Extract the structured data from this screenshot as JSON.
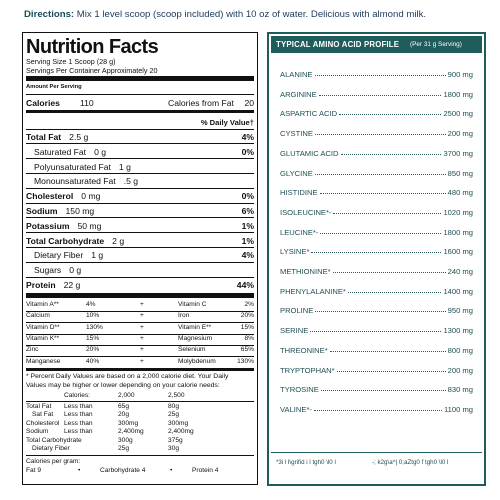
{
  "directions": {
    "label": "Directions:",
    "text": "Mix 1 level scoop (scoop included) with 10 oz of water. Delicious with almond milk."
  },
  "nutrition_facts": {
    "title": "Nutrition Facts",
    "serving_size": "Serving Size 1 Scoop (28 g)",
    "servings": "Servings Per Container Approximately 20",
    "amount_per_serving": "Amount Per Serving",
    "calories": {
      "label": "Calories",
      "value": "110"
    },
    "calories_from_fat": {
      "label": "Calories from Fat",
      "value": "20"
    },
    "daily_value_header": "% Daily Value†",
    "nutrients": [
      {
        "name": "Total Fat",
        "amount": "2.5 g",
        "dv": "4%"
      },
      {
        "name": "Saturated Fat",
        "amount": "0 g",
        "dv": "0%"
      },
      {
        "name": "Polyunsaturated Fat",
        "amount": "1 g"
      },
      {
        "name": "Monounsaturated Fat",
        "amount": ".5 g"
      },
      {
        "name": "Cholesterol",
        "amount": "0 mg",
        "dv": "0%"
      },
      {
        "name": "Sodium",
        "amount": "150 mg",
        "dv": "6%"
      },
      {
        "name": "Potassium",
        "amount": "50 mg",
        "dv": "1%"
      },
      {
        "name": "Total Carbohydrate",
        "amount": "2 g",
        "dv": "1%"
      },
      {
        "name": "Dietary Fiber",
        "amount": "1 g",
        "dv": "4%"
      },
      {
        "name": "Sugars",
        "amount": "0 g"
      },
      {
        "name": "Protein",
        "amount": "22 g",
        "dv": "44%"
      }
    ],
    "vitamins": [
      [
        "Vitamin A**",
        "4%",
        "+",
        "Vitamin C",
        "2%"
      ],
      [
        "Calcium",
        "10%",
        "+",
        "Iron",
        "20%"
      ],
      [
        "Vitamin D**",
        "130%",
        "+",
        "Vitamin E**",
        "15%"
      ],
      [
        "Vitamin K**",
        "15%",
        "+",
        "Magnesium",
        "8%"
      ],
      [
        "Zinc",
        "20%",
        "+",
        "Selenium",
        "65%"
      ],
      [
        "Manganese",
        "40%",
        "+",
        "Molybdenum",
        "130%"
      ]
    ],
    "footnote": [
      "* Percent Daily Values are based on a 2,000 calorie diet. Your Daily",
      "Values may be higher or lower depending on your calorie needs:"
    ],
    "dv_table": {
      "header": [
        "Calories:",
        "2,000",
        "2,500"
      ],
      "rows": [
        [
          "Total Fat",
          "Less than",
          "65g",
          "80g"
        ],
        [
          "Sat Fat",
          "Less than",
          "20g",
          "25g"
        ],
        [
          "Cholesterol",
          "Less than",
          "300mg",
          "300mg"
        ],
        [
          "Sodium",
          "Less than",
          "2,400mg",
          "2,400mg"
        ],
        [
          "Total Carbohydrate",
          "300g",
          "375g"
        ],
        [
          "Dietary Fiber",
          "25g",
          "30g"
        ]
      ]
    },
    "calories_per_gram": {
      "label": "Calories per gram:",
      "items": [
        "Fat 9",
        "•",
        "Carbohydrate 4",
        "•",
        "Protein 4"
      ]
    }
  },
  "amino_profile": {
    "title": "TYPICAL AMINO ACID PROFILE",
    "serving": "(Per 31 g Serving)",
    "rows": [
      {
        "name": "ALANINE",
        "amount": "900 mg"
      },
      {
        "name": "ARGININE",
        "amount": "1800 mg"
      },
      {
        "name": "ASPARTIC ACID",
        "amount": "2500 mg"
      },
      {
        "name": "CYSTINE",
        "amount": "200 mg"
      },
      {
        "name": "GLUTAMIC ACID",
        "amount": "3700 mg"
      },
      {
        "name": "GLYCINE",
        "amount": "850 mg"
      },
      {
        "name": "HISTIDINE",
        "amount": "480 mg"
      },
      {
        "name": "ISOLEUCINE*-",
        "amount": "1020 mg"
      },
      {
        "name": "LEUCINE*-",
        "amount": "1800 mg"
      },
      {
        "name": "LYSINE*",
        "amount": "1600 mg"
      },
      {
        "name": "METHIONINE*",
        "amount": "240 mg"
      },
      {
        "name": "PHENYLALANINE*",
        "amount": "1400 mg"
      },
      {
        "name": "PROLINE",
        "amount": "950 mg"
      },
      {
        "name": "SERINE",
        "amount": "1300 mg"
      },
      {
        "name": "THREONINE*",
        "amount": "800 mg"
      },
      {
        "name": "TRYPTOPHAN*",
        "amount": "200 mg"
      },
      {
        "name": "TYROSINE",
        "amount": "830 mg"
      },
      {
        "name": "VALINE*-",
        "amount": "1100 mg"
      }
    ],
    "footnotes": [
      "*3i l ł\\grifid i l tgh0 \\l0 l",
      "-; k2g\\a^| 0;aZtg0 f tgh0 \\l0 l"
    ]
  }
}
